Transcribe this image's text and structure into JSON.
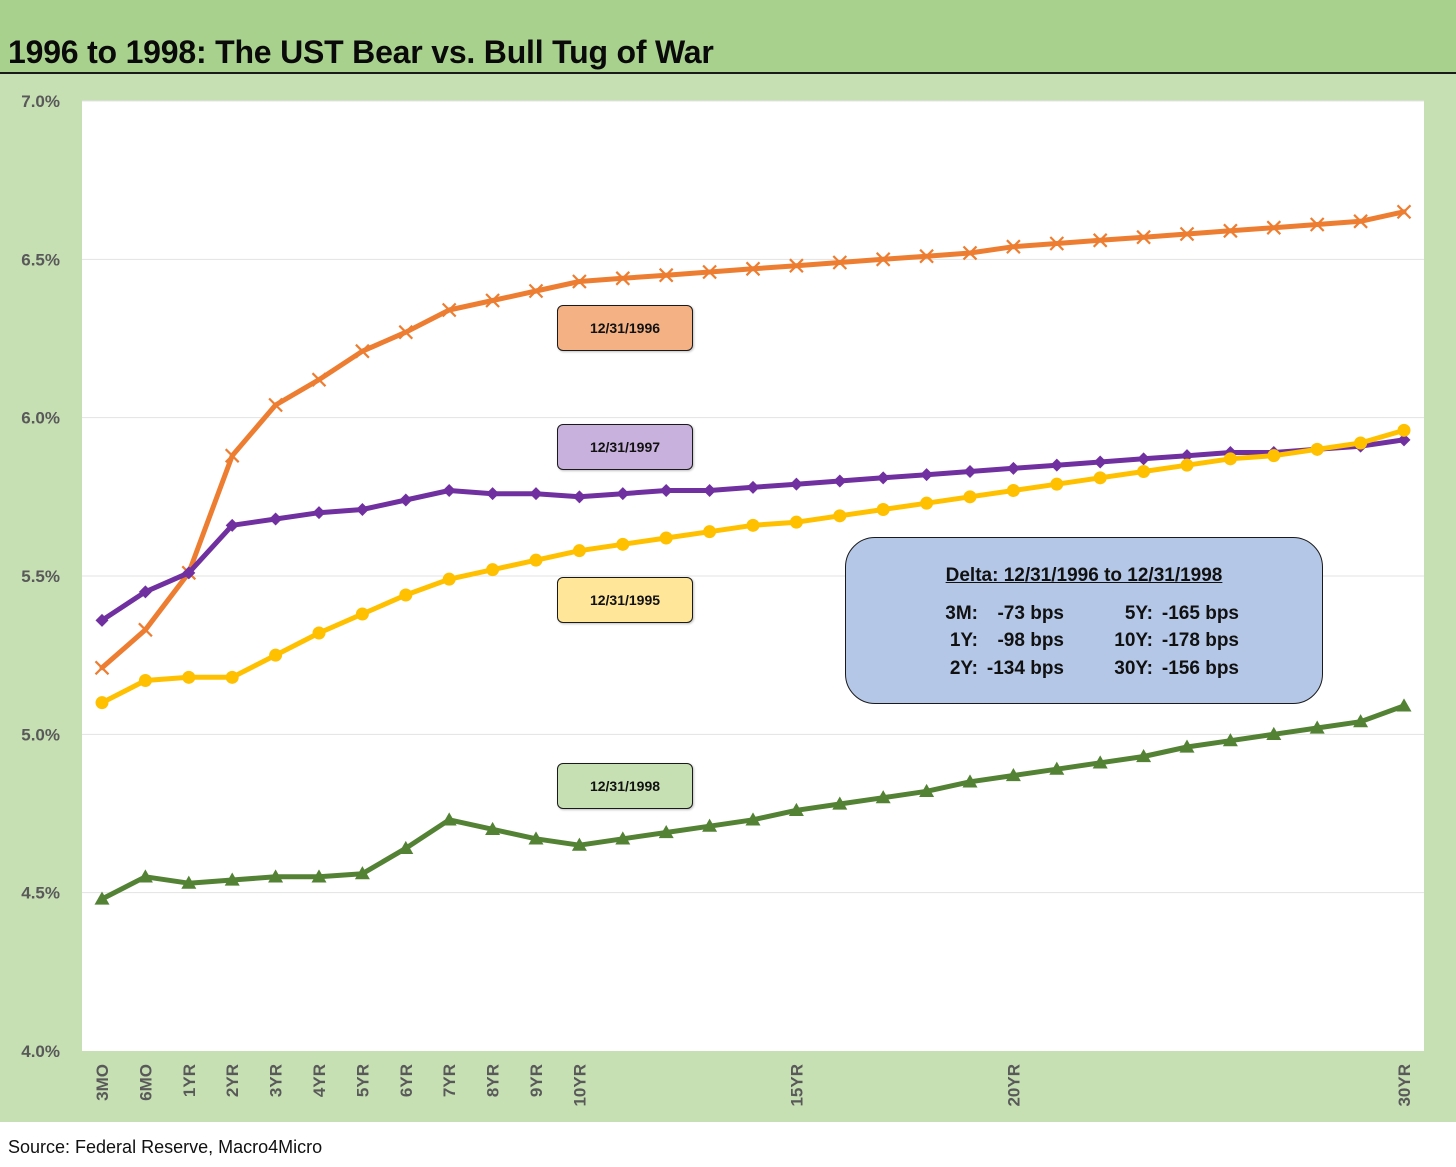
{
  "title": "1996 to 1998: The UST Bear vs. Bull Tug of War",
  "source": "Source: Federal Reserve, Macro4Micro",
  "colors": {
    "title_bg": "#a9d18e",
    "frame_bg": "#c6e0b4",
    "plot_bg": "#ffffff",
    "gridline": "#e3e3e3",
    "axis_text": "#595959",
    "delta_box_bg": "#b4c7e7"
  },
  "chart_data": {
    "type": "line",
    "title": "1996 to 1998: The UST Bear vs. Bull Tug of War",
    "xlabel": "",
    "ylabel": "",
    "ylim": [
      4.0,
      7.0
    ],
    "y_ticks": [
      "4.0%",
      "4.5%",
      "5.0%",
      "5.5%",
      "6.0%",
      "6.5%",
      "7.0%"
    ],
    "x_count": 31,
    "x_tick_labels": [
      "3MO",
      "6MO",
      "1YR",
      "2YR",
      "3YR",
      "4YR",
      "5YR",
      "6YR",
      "7YR",
      "8YR",
      "9YR",
      "10YR",
      "",
      "",
      "",
      "",
      "15YR",
      "",
      "",
      "",
      "",
      "20YR",
      "",
      "",
      "",
      "",
      "",
      "",
      "",
      "",
      "30YR"
    ],
    "grid": "horizontal",
    "legend": "inline tags",
    "series": [
      {
        "name": "12/31/1996",
        "color": "#ed7d31",
        "marker": "x",
        "tag_fill": "#f4b183",
        "values": [
          5.21,
          5.33,
          5.51,
          5.88,
          6.04,
          6.12,
          6.21,
          6.27,
          6.34,
          6.37,
          6.4,
          6.43,
          6.44,
          6.45,
          6.46,
          6.47,
          6.48,
          6.49,
          6.5,
          6.51,
          6.52,
          6.54,
          6.55,
          6.56,
          6.57,
          6.58,
          6.59,
          6.6,
          6.61,
          6.62,
          6.65
        ]
      },
      {
        "name": "12/31/1997",
        "color": "#7030a0",
        "marker": "diamond",
        "tag_fill": "#c9b1dd",
        "values": [
          5.36,
          5.45,
          5.51,
          5.66,
          5.68,
          5.7,
          5.71,
          5.74,
          5.77,
          5.76,
          5.76,
          5.75,
          5.76,
          5.77,
          5.77,
          5.78,
          5.79,
          5.8,
          5.81,
          5.82,
          5.83,
          5.84,
          5.85,
          5.86,
          5.87,
          5.88,
          5.89,
          5.89,
          5.9,
          5.91,
          5.93
        ]
      },
      {
        "name": "12/31/1995",
        "color": "#ffc000",
        "marker": "circle",
        "tag_fill": "#ffe699",
        "values": [
          5.1,
          5.17,
          5.18,
          5.18,
          5.25,
          5.32,
          5.38,
          5.44,
          5.49,
          5.52,
          5.55,
          5.58,
          5.6,
          5.62,
          5.64,
          5.66,
          5.67,
          5.69,
          5.71,
          5.73,
          5.75,
          5.77,
          5.79,
          5.81,
          5.83,
          5.85,
          5.87,
          5.88,
          5.9,
          5.92,
          5.96
        ]
      },
      {
        "name": "12/31/1998",
        "color": "#548235",
        "marker": "triangle",
        "tag_fill": "#c6e0b4",
        "values": [
          4.48,
          4.55,
          4.53,
          4.54,
          4.55,
          4.55,
          4.56,
          4.64,
          4.73,
          4.7,
          4.67,
          4.65,
          4.67,
          4.69,
          4.71,
          4.73,
          4.76,
          4.78,
          4.8,
          4.82,
          4.85,
          4.87,
          4.89,
          4.91,
          4.93,
          4.96,
          4.98,
          5.0,
          5.02,
          5.04,
          5.09
        ]
      }
    ],
    "annotations": {
      "delta_box": {
        "title": "Delta: 12/31/1996 to 12/31/1998",
        "rows": [
          {
            "l1": "3M:",
            "v1": "-73 bps",
            "l2": "5Y:",
            "v2": "-165 bps"
          },
          {
            "l1": "1Y:",
            "v1": "-98 bps",
            "l2": "10Y:",
            "v2": "-178 bps"
          },
          {
            "l1": "2Y:",
            "v1": "-134 bps",
            "l2": "30Y:",
            "v2": "-156 bps"
          }
        ]
      }
    }
  }
}
